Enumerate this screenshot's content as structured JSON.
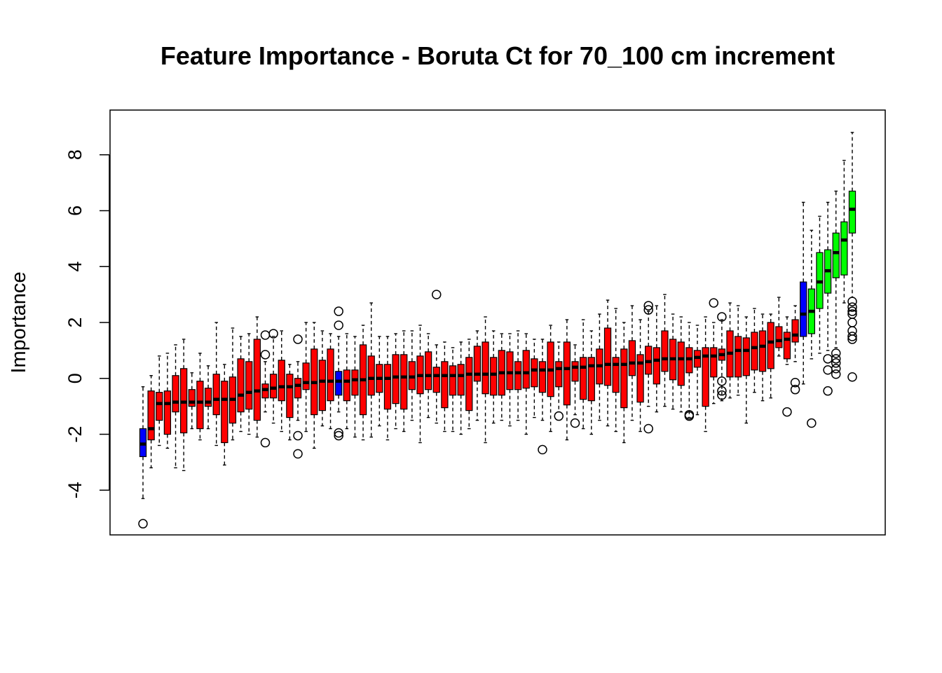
{
  "chart_data": {
    "type": "boxplot",
    "title": "Feature Importance - Boruta Ct for 70_100 cm increment",
    "xlabel": "",
    "ylabel": "Importance",
    "ylim": [
      -5.6,
      9.6
    ],
    "yticks": [
      -4,
      -2,
      0,
      2,
      4,
      6,
      8
    ],
    "grid": false,
    "legend": "none",
    "colors": {
      "rejected": "#ff0000",
      "shadow": "#0000ff",
      "confirmed": "#00ff00",
      "median": "#000000"
    },
    "boxes": [
      {
        "status": "shadow",
        "min": -4.3,
        "q1": -2.8,
        "median": -2.35,
        "q3": -1.8,
        "max": -0.3,
        "outliers": [
          -5.2
        ]
      },
      {
        "status": "rejected",
        "min": -3.2,
        "q1": -2.2,
        "median": -1.8,
        "q3": -0.45,
        "max": 0.1,
        "outliers": []
      },
      {
        "status": "rejected",
        "min": -2.4,
        "q1": -1.5,
        "median": -0.9,
        "q3": -0.5,
        "max": 0.8,
        "outliers": []
      },
      {
        "status": "rejected",
        "min": -2.5,
        "q1": -2.0,
        "median": -0.9,
        "q3": -0.45,
        "max": 0.9,
        "outliers": []
      },
      {
        "status": "rejected",
        "min": -3.2,
        "q1": -1.2,
        "median": -0.85,
        "q3": 0.1,
        "max": 1.2,
        "outliers": []
      },
      {
        "status": "rejected",
        "min": -3.3,
        "q1": -1.95,
        "median": -0.85,
        "q3": 0.35,
        "max": 1.4,
        "outliers": []
      },
      {
        "status": "rejected",
        "min": -1.8,
        "q1": -1.0,
        "median": -0.85,
        "q3": -0.4,
        "max": 0.2,
        "outliers": []
      },
      {
        "status": "rejected",
        "min": -2.2,
        "q1": -1.8,
        "median": -0.85,
        "q3": -0.1,
        "max": 0.9,
        "outliers": []
      },
      {
        "status": "rejected",
        "min": -1.8,
        "q1": -1.0,
        "median": -0.85,
        "q3": -0.35,
        "max": 0.45,
        "outliers": []
      },
      {
        "status": "rejected",
        "min": -2.4,
        "q1": -1.3,
        "median": -0.75,
        "q3": 0.15,
        "max": 2.0,
        "outliers": []
      },
      {
        "status": "rejected",
        "min": -3.1,
        "q1": -2.3,
        "median": -0.75,
        "q3": -0.1,
        "max": 0.5,
        "outliers": []
      },
      {
        "status": "rejected",
        "min": -2.2,
        "q1": -1.6,
        "median": -0.75,
        "q3": 0.05,
        "max": 1.8,
        "outliers": []
      },
      {
        "status": "rejected",
        "min": -1.9,
        "q1": -1.2,
        "median": -0.6,
        "q3": 0.7,
        "max": 1.5,
        "outliers": []
      },
      {
        "status": "rejected",
        "min": -2.0,
        "q1": -1.1,
        "median": -0.5,
        "q3": 0.6,
        "max": 1.6,
        "outliers": []
      },
      {
        "status": "rejected",
        "min": -2.1,
        "q1": -1.5,
        "median": -0.45,
        "q3": 1.4,
        "max": 2.2,
        "outliers": []
      },
      {
        "status": "rejected",
        "min": -1.2,
        "q1": -0.7,
        "median": -0.4,
        "q3": -0.2,
        "max": 0.6,
        "outliers": [
          -2.3,
          0.85,
          1.55
        ]
      },
      {
        "status": "rejected",
        "min": -1.6,
        "q1": -0.7,
        "median": -0.35,
        "q3": 0.15,
        "max": 1.5,
        "outliers": [
          1.6
        ]
      },
      {
        "status": "rejected",
        "min": -1.9,
        "q1": -0.8,
        "median": -0.3,
        "q3": 0.65,
        "max": 1.7,
        "outliers": []
      },
      {
        "status": "rejected",
        "min": -2.2,
        "q1": -1.4,
        "median": -0.3,
        "q3": 0.15,
        "max": 0.5,
        "outliers": []
      },
      {
        "status": "rejected",
        "min": -1.5,
        "q1": -0.7,
        "median": -0.25,
        "q3": 0.0,
        "max": 0.6,
        "outliers": [
          -2.05,
          -2.7,
          1.4
        ]
      },
      {
        "status": "rejected",
        "min": -1.9,
        "q1": -0.4,
        "median": -0.15,
        "q3": 0.55,
        "max": 2.0,
        "outliers": []
      },
      {
        "status": "rejected",
        "min": -2.5,
        "q1": -1.3,
        "median": -0.15,
        "q3": 1.05,
        "max": 2.0,
        "outliers": []
      },
      {
        "status": "rejected",
        "min": -1.7,
        "q1": -1.15,
        "median": -0.1,
        "q3": 0.65,
        "max": 1.7,
        "outliers": []
      },
      {
        "status": "rejected",
        "min": -1.8,
        "q1": -0.8,
        "median": -0.1,
        "q3": 1.05,
        "max": 1.6,
        "outliers": []
      },
      {
        "status": "shadow",
        "min": -1.2,
        "q1": -0.6,
        "median": -0.1,
        "q3": 0.25,
        "max": 1.5,
        "outliers": [
          -1.95,
          -2.05,
          1.9,
          2.4
        ]
      },
      {
        "status": "rejected",
        "min": -1.8,
        "q1": -0.8,
        "median": -0.1,
        "q3": 0.3,
        "max": 1.6,
        "outliers": []
      },
      {
        "status": "rejected",
        "min": -2.1,
        "q1": -0.6,
        "median": -0.05,
        "q3": 0.3,
        "max": 1.5,
        "outliers": []
      },
      {
        "status": "rejected",
        "min": -2.2,
        "q1": -1.3,
        "median": -0.05,
        "q3": 1.2,
        "max": 1.9,
        "outliers": []
      },
      {
        "status": "rejected",
        "min": -2.1,
        "q1": -0.6,
        "median": 0.0,
        "q3": 0.8,
        "max": 2.7,
        "outliers": []
      },
      {
        "status": "rejected",
        "min": -1.7,
        "q1": -0.5,
        "median": 0.0,
        "q3": 0.5,
        "max": 1.5,
        "outliers": []
      },
      {
        "status": "rejected",
        "min": -2.2,
        "q1": -1.1,
        "median": 0.0,
        "q3": 0.5,
        "max": 1.5,
        "outliers": []
      },
      {
        "status": "rejected",
        "min": -1.8,
        "q1": -0.9,
        "median": 0.05,
        "q3": 0.85,
        "max": 1.6,
        "outliers": []
      },
      {
        "status": "rejected",
        "min": -1.9,
        "q1": -1.1,
        "median": 0.05,
        "q3": 0.85,
        "max": 1.7,
        "outliers": []
      },
      {
        "status": "rejected",
        "min": -1.5,
        "q1": -0.4,
        "median": 0.05,
        "q3": 0.6,
        "max": 1.7,
        "outliers": []
      },
      {
        "status": "rejected",
        "min": -2.3,
        "q1": -0.55,
        "median": 0.1,
        "q3": 0.8,
        "max": 1.9,
        "outliers": []
      },
      {
        "status": "rejected",
        "min": -1.4,
        "q1": -0.4,
        "median": 0.1,
        "q3": 0.95,
        "max": 1.6,
        "outliers": []
      },
      {
        "status": "rejected",
        "min": -1.6,
        "q1": -0.5,
        "median": 0.1,
        "q3": 0.4,
        "max": 1.2,
        "outliers": [
          3.0
        ]
      },
      {
        "status": "rejected",
        "min": -1.9,
        "q1": -1.05,
        "median": 0.1,
        "q3": 0.6,
        "max": 1.3,
        "outliers": []
      },
      {
        "status": "rejected",
        "min": -1.9,
        "q1": -0.6,
        "median": 0.1,
        "q3": 0.45,
        "max": 1.1,
        "outliers": []
      },
      {
        "status": "rejected",
        "min": -2.0,
        "q1": -0.6,
        "median": 0.1,
        "q3": 0.5,
        "max": 1.3,
        "outliers": []
      },
      {
        "status": "rejected",
        "min": -1.8,
        "q1": -1.15,
        "median": 0.15,
        "q3": 0.75,
        "max": 1.4,
        "outliers": []
      },
      {
        "status": "rejected",
        "min": -1.5,
        "q1": -0.1,
        "median": 0.15,
        "q3": 1.15,
        "max": 1.7,
        "outliers": []
      },
      {
        "status": "rejected",
        "min": -2.3,
        "q1": -0.55,
        "median": 0.15,
        "q3": 1.3,
        "max": 2.2,
        "outliers": []
      },
      {
        "status": "rejected",
        "min": -1.6,
        "q1": -0.6,
        "median": 0.15,
        "q3": 0.75,
        "max": 1.7,
        "outliers": []
      },
      {
        "status": "rejected",
        "min": -1.5,
        "q1": -0.6,
        "median": 0.2,
        "q3": 1.0,
        "max": 1.6,
        "outliers": []
      },
      {
        "status": "rejected",
        "min": -1.7,
        "q1": -0.4,
        "median": 0.2,
        "q3": 0.95,
        "max": 1.6,
        "outliers": []
      },
      {
        "status": "rejected",
        "min": -1.5,
        "q1": -0.4,
        "median": 0.2,
        "q3": 0.6,
        "max": 1.7,
        "outliers": []
      },
      {
        "status": "rejected",
        "min": -2.0,
        "q1": -0.35,
        "median": 0.2,
        "q3": 1.0,
        "max": 1.6,
        "outliers": []
      },
      {
        "status": "rejected",
        "min": -1.4,
        "q1": -0.3,
        "median": 0.3,
        "q3": 0.7,
        "max": 1.4,
        "outliers": []
      },
      {
        "status": "rejected",
        "min": -1.5,
        "q1": -0.5,
        "median": 0.3,
        "q3": 0.6,
        "max": 1.4,
        "outliers": [
          -2.55
        ]
      },
      {
        "status": "rejected",
        "min": -1.9,
        "q1": -0.65,
        "median": 0.3,
        "q3": 1.3,
        "max": 1.9,
        "outliers": []
      },
      {
        "status": "rejected",
        "min": -1.2,
        "q1": -0.3,
        "median": 0.35,
        "q3": 0.6,
        "max": 1.3,
        "outliers": [
          -1.35
        ]
      },
      {
        "status": "rejected",
        "min": -2.2,
        "q1": -0.95,
        "median": 0.35,
        "q3": 1.3,
        "max": 2.1,
        "outliers": []
      },
      {
        "status": "rejected",
        "min": -1.3,
        "q1": -0.1,
        "median": 0.4,
        "q3": 0.6,
        "max": 1.2,
        "outliers": [
          -1.6
        ]
      },
      {
        "status": "rejected",
        "min": -1.8,
        "q1": -0.75,
        "median": 0.4,
        "q3": 0.75,
        "max": 2.1,
        "outliers": []
      },
      {
        "status": "rejected",
        "min": -2.0,
        "q1": -0.8,
        "median": 0.45,
        "q3": 0.75,
        "max": 1.7,
        "outliers": []
      },
      {
        "status": "rejected",
        "min": -1.5,
        "q1": -0.2,
        "median": 0.45,
        "q3": 1.05,
        "max": 2.3,
        "outliers": []
      },
      {
        "status": "rejected",
        "min": -1.7,
        "q1": -0.25,
        "median": 0.5,
        "q3": 1.8,
        "max": 2.8,
        "outliers": []
      },
      {
        "status": "rejected",
        "min": -1.9,
        "q1": -0.5,
        "median": 0.5,
        "q3": 0.75,
        "max": 2.5,
        "outliers": []
      },
      {
        "status": "rejected",
        "min": -2.3,
        "q1": -1.05,
        "median": 0.5,
        "q3": 1.05,
        "max": 2.0,
        "outliers": []
      },
      {
        "status": "rejected",
        "min": -1.5,
        "q1": 0.1,
        "median": 0.55,
        "q3": 1.35,
        "max": 2.6,
        "outliers": []
      },
      {
        "status": "rejected",
        "min": -1.9,
        "q1": -0.85,
        "median": 0.55,
        "q3": 0.85,
        "max": 2.1,
        "outliers": []
      },
      {
        "status": "rejected",
        "min": -1.0,
        "q1": 0.15,
        "median": 0.6,
        "q3": 1.15,
        "max": 2.4,
        "outliers": [
          -1.8,
          2.45,
          2.6
        ]
      },
      {
        "status": "rejected",
        "min": -1.2,
        "q1": -0.2,
        "median": 0.65,
        "q3": 1.1,
        "max": 2.6,
        "outliers": []
      },
      {
        "status": "rejected",
        "min": -1.0,
        "q1": 0.25,
        "median": 0.7,
        "q3": 1.7,
        "max": 3.0,
        "outliers": []
      },
      {
        "status": "rejected",
        "min": -1.1,
        "q1": -0.05,
        "median": 0.7,
        "q3": 1.4,
        "max": 2.3,
        "outliers": []
      },
      {
        "status": "rejected",
        "min": -1.2,
        "q1": -0.25,
        "median": 0.7,
        "q3": 1.3,
        "max": 2.2,
        "outliers": []
      },
      {
        "status": "rejected",
        "min": -1.4,
        "q1": 0.2,
        "median": 0.7,
        "q3": 1.1,
        "max": 2.0,
        "outliers": [
          -1.3,
          -1.35
        ]
      },
      {
        "status": "rejected",
        "min": -1.3,
        "q1": 0.4,
        "median": 0.75,
        "q3": 1.0,
        "max": 1.9,
        "outliers": []
      },
      {
        "status": "rejected",
        "min": -1.9,
        "q1": -1.0,
        "median": 0.8,
        "q3": 1.1,
        "max": 2.2,
        "outliers": []
      },
      {
        "status": "rejected",
        "min": -0.9,
        "q1": 0.05,
        "median": 0.8,
        "q3": 1.1,
        "max": 2.0,
        "outliers": [
          2.7
        ]
      },
      {
        "status": "rejected",
        "min": -0.8,
        "q1": 0.65,
        "median": 0.85,
        "q3": 1.05,
        "max": 2.1,
        "outliers": [
          2.2,
          -0.1,
          -0.45,
          -0.6
        ]
      },
      {
        "status": "rejected",
        "min": -0.7,
        "q1": 0.05,
        "median": 0.9,
        "q3": 1.7,
        "max": 2.7,
        "outliers": []
      },
      {
        "status": "rejected",
        "min": -0.6,
        "q1": 0.05,
        "median": 1.0,
        "q3": 1.5,
        "max": 2.6,
        "outliers": []
      },
      {
        "status": "rejected",
        "min": -1.6,
        "q1": 0.1,
        "median": 1.0,
        "q3": 1.45,
        "max": 2.2,
        "outliers": []
      },
      {
        "status": "rejected",
        "min": -0.5,
        "q1": 0.3,
        "median": 1.1,
        "q3": 1.65,
        "max": 2.5,
        "outliers": []
      },
      {
        "status": "rejected",
        "min": -0.8,
        "q1": 0.25,
        "median": 1.15,
        "q3": 1.7,
        "max": 2.3,
        "outliers": []
      },
      {
        "status": "rejected",
        "min": -0.7,
        "q1": 0.35,
        "median": 1.3,
        "q3": 2.0,
        "max": 2.3,
        "outliers": []
      },
      {
        "status": "rejected",
        "min": 0.8,
        "q1": 1.1,
        "median": 1.35,
        "q3": 1.85,
        "max": 2.9,
        "outliers": []
      },
      {
        "status": "rejected",
        "min": 0.5,
        "q1": 0.7,
        "median": 1.4,
        "q3": 1.65,
        "max": 2.2,
        "outliers": [
          -1.2
        ]
      },
      {
        "status": "rejected",
        "min": 0.6,
        "q1": 1.3,
        "median": 1.55,
        "q3": 2.1,
        "max": 2.6,
        "outliers": [
          -0.15,
          -0.4
        ]
      },
      {
        "status": "shadow",
        "min": -0.2,
        "q1": 1.5,
        "median": 2.3,
        "q3": 3.45,
        "max": 6.3,
        "outliers": []
      },
      {
        "status": "confirmed",
        "min": 0.7,
        "q1": 1.6,
        "median": 2.4,
        "q3": 3.2,
        "max": 5.3,
        "outliers": [
          -1.6
        ]
      },
      {
        "status": "confirmed",
        "min": 0.9,
        "q1": 2.5,
        "median": 3.45,
        "q3": 4.5,
        "max": 5.8,
        "outliers": []
      },
      {
        "status": "confirmed",
        "min": 1.0,
        "q1": 3.05,
        "median": 3.85,
        "q3": 4.6,
        "max": 6.3,
        "outliers": [
          -0.45,
          0.3,
          0.7
        ]
      },
      {
        "status": "confirmed",
        "min": 1.1,
        "q1": 3.6,
        "median": 4.5,
        "q3": 5.2,
        "max": 6.7,
        "outliers": [
          0.15,
          0.35,
          0.55,
          0.7,
          0.9
        ]
      },
      {
        "status": "confirmed",
        "min": 2.7,
        "q1": 3.7,
        "median": 4.95,
        "q3": 5.6,
        "max": 7.8,
        "outliers": []
      },
      {
        "status": "confirmed",
        "min": 2.9,
        "q1": 5.2,
        "median": 6.05,
        "q3": 6.7,
        "max": 8.8,
        "outliers": [
          0.05,
          1.4,
          1.5,
          1.7,
          2.0,
          2.3,
          2.4,
          2.55,
          2.75
        ]
      }
    ]
  }
}
